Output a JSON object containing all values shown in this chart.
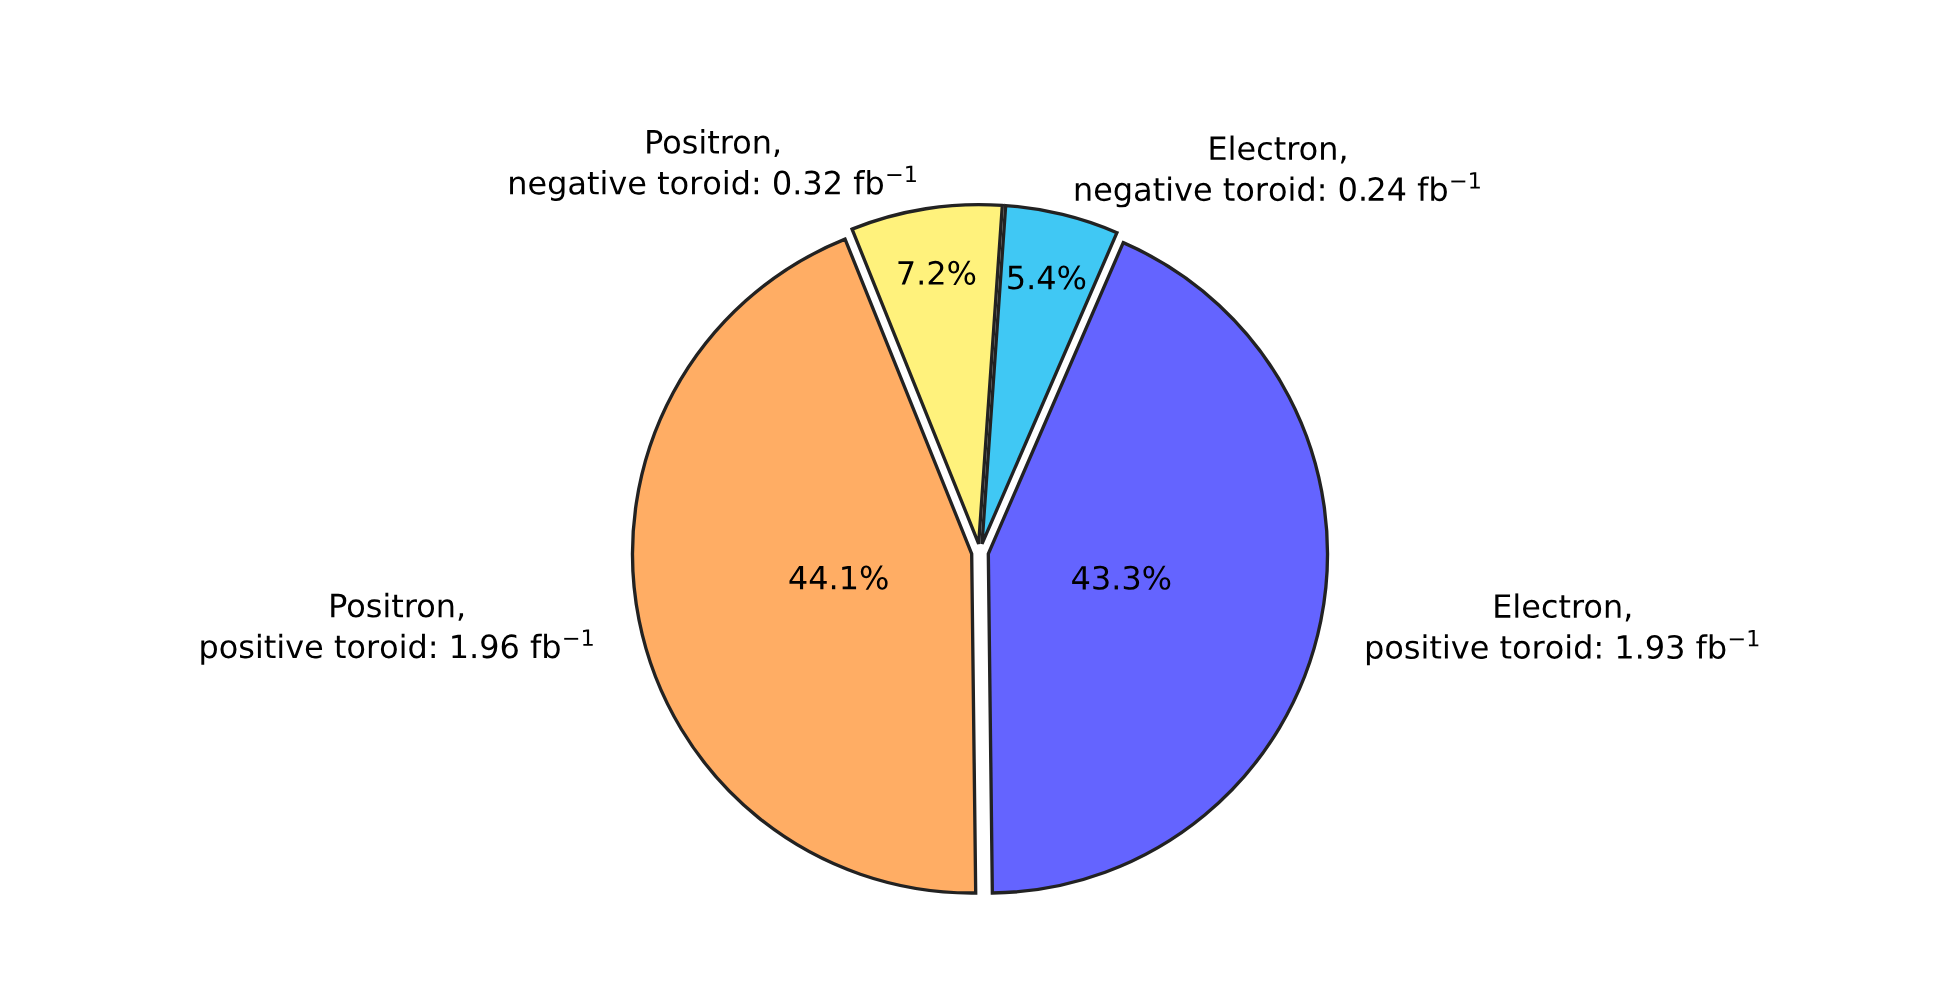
{
  "chart_data": {
    "type": "pie",
    "categories": [
      "Electron,\nnegative toroid: 0.24 fb$^{−1}$",
      "Electron,\npositive toroid: 1.93 fb$^{−1}$",
      "Positron,\npositive toroid: 1.96 fb$^{−1}$",
      "Positron,\nnegative toroid: 0.32 fb$^{−1}$"
    ],
    "values": [
      5.4,
      43.3,
      44.1,
      7.2
    ],
    "value_labels": [
      "5.4%",
      "43.3%",
      "44.1%",
      "7.2%"
    ],
    "colors": [
      "#40c8f4",
      "#6464ff",
      "#ffad64",
      "#fff27c"
    ],
    "legend": false
  }
}
